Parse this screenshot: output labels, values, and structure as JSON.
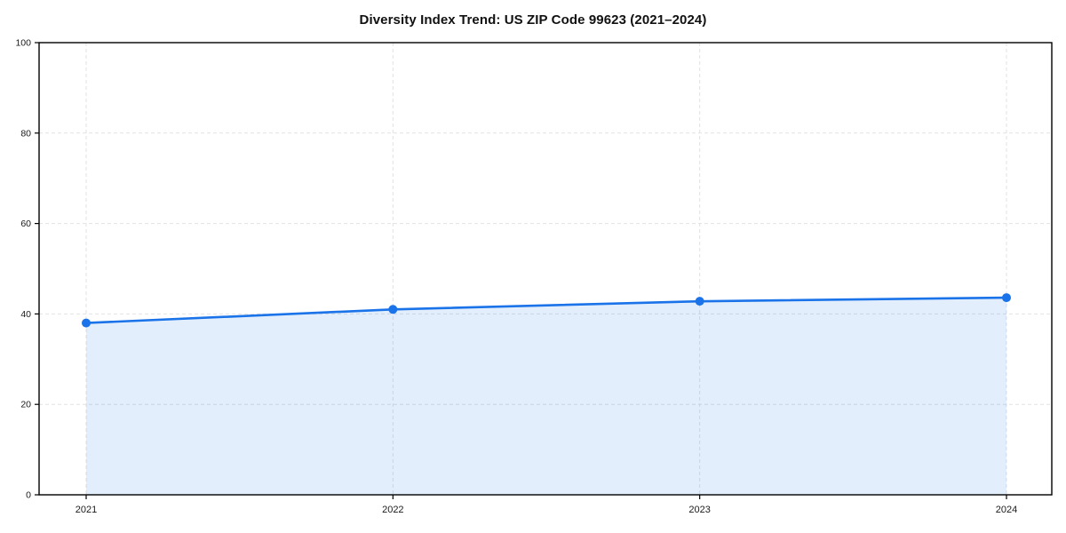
{
  "chart_data": {
    "type": "area",
    "title": "Diversity Index Trend: US ZIP Code 99623 (2021–2024)",
    "x": [
      "2021",
      "2022",
      "2023",
      "2024"
    ],
    "series": [
      {
        "name": "Diversity Index",
        "values": [
          38.0,
          41.0,
          42.8,
          43.6
        ]
      }
    ],
    "xlabel": "",
    "ylabel": "",
    "ylim": [
      0,
      100
    ],
    "yticks": [
      0,
      20,
      40,
      60,
      80,
      100
    ],
    "grid": "dashed-both-axes",
    "legend": "none",
    "line_color": "#1a73e8",
    "marker_color": "#1a73e8",
    "fill_color": "rgba(26,115,232,0.12)",
    "gridline_color": "#e2e2e2",
    "spine_color": "#000000",
    "background_color": "#ffffff"
  }
}
